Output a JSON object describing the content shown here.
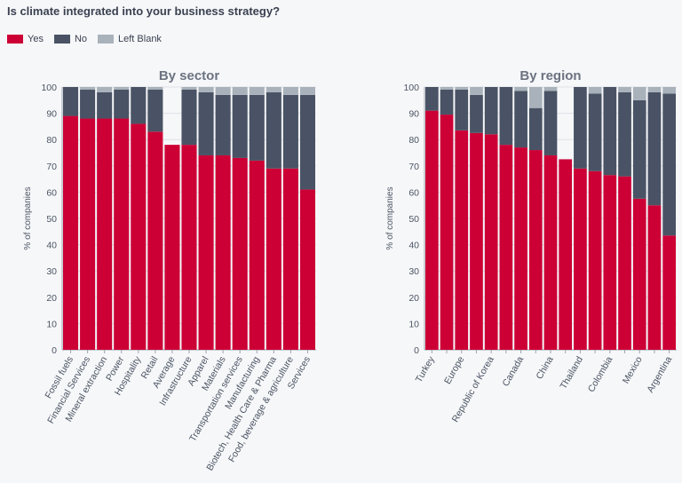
{
  "title": "Is climate integrated into your business strategy?",
  "legend": [
    "Yes",
    "No",
    "Left Blank"
  ],
  "colors": {
    "Yes": "#cc0035",
    "No": "#495365",
    "Left Blank": "#a9b2bb"
  },
  "chart_data": [
    {
      "type": "bar",
      "stacked": true,
      "title": "By sector",
      "ylabel": "% of companies",
      "ylim": [
        0,
        100
      ],
      "yticks": [
        0,
        10,
        20,
        30,
        40,
        50,
        60,
        70,
        80,
        90,
        100
      ],
      "grid": true,
      "categories": [
        "Fossil fuels",
        "Financial Services",
        "Mineral extraction",
        "Power",
        "Hospitality",
        "Retail",
        "Average",
        "Infrastructure",
        "Apparel",
        "Materials",
        "Transportation services",
        "Manufacturing",
        "Biotech, Health Care & Pharma",
        "Food, beverage & agriculture",
        "Services"
      ],
      "series": [
        {
          "name": "Yes",
          "values": [
            89,
            88,
            88,
            88,
            86,
            83,
            78,
            78,
            74,
            74,
            73,
            72,
            69,
            69,
            61
          ]
        },
        {
          "name": "No",
          "values": [
            11,
            11,
            10,
            11,
            14,
            16,
            0,
            21,
            24,
            23,
            24,
            25,
            29,
            28,
            36
          ]
        },
        {
          "name": "Left Blank",
          "values": [
            0,
            1,
            2,
            1,
            0,
            1,
            0,
            1,
            2,
            3,
            3,
            3,
            2,
            3,
            3
          ]
        }
      ]
    },
    {
      "type": "bar",
      "stacked": true,
      "title": "By region",
      "ylabel": "% of companies",
      "ylim": [
        0,
        100
      ],
      "yticks": [
        0,
        10,
        20,
        30,
        40,
        50,
        60,
        70,
        80,
        90,
        100
      ],
      "grid": true,
      "categories": [
        "Turkey",
        "",
        "Europe",
        "",
        "Republic of Korea",
        "",
        "Canada",
        "",
        "China",
        "",
        "Thailand",
        "",
        "Colombia",
        "",
        "Mexico",
        "",
        "Argentina"
      ],
      "series": [
        {
          "name": "Yes",
          "values": [
            91,
            89.5,
            83.5,
            82.5,
            82,
            78,
            77,
            76,
            74,
            72.5,
            69,
            68,
            66.5,
            66,
            57.5,
            55,
            43.5
          ]
        },
        {
          "name": "No",
          "values": [
            9,
            9.5,
            15.5,
            14.5,
            18,
            22,
            21.5,
            16,
            24.5,
            0,
            31,
            29.5,
            33.5,
            32,
            37.5,
            43,
            54
          ]
        },
        {
          "name": "Left Blank",
          "values": [
            0,
            1,
            1,
            3,
            0,
            0,
            1.5,
            8,
            1.5,
            0,
            0,
            2.5,
            0,
            2,
            5,
            2,
            2.5
          ]
        }
      ]
    }
  ]
}
